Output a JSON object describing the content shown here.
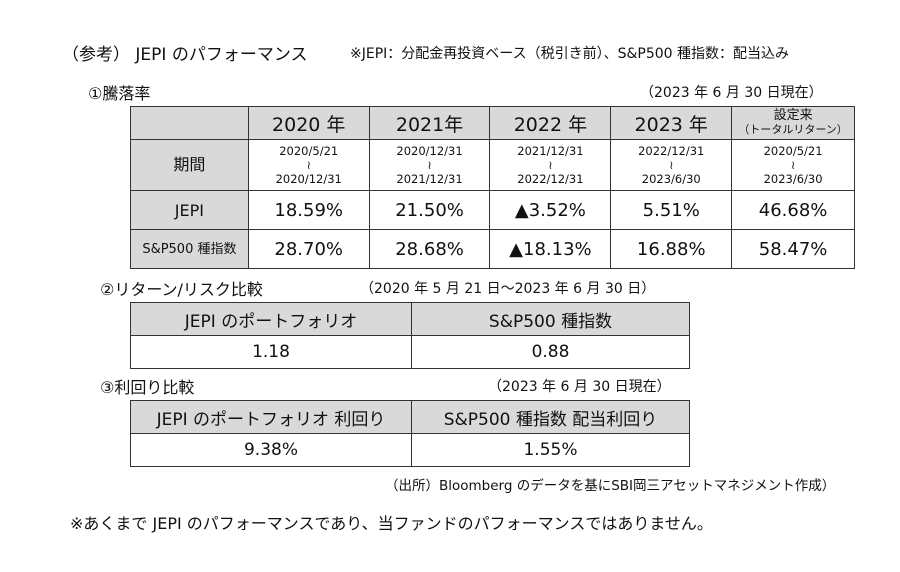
{
  "title": "（参考） JEPI のパフォーマンス",
  "note": "※JEPI：分配金再投資ベース（税引き前）、S&P500 種指数：配当込み",
  "section1": {
    "heading": "①騰落率",
    "as_of": "（2023 年 6 月 30 日現在）",
    "columns": [
      "2020 年",
      "2021年",
      "2022 年",
      "2023 年"
    ],
    "since_inception": "設定来",
    "since_inception_sub": "（トータルリターン）",
    "period_label": "期間",
    "periods": [
      {
        "start": "2020/5/21",
        "end": "2020/12/31"
      },
      {
        "start": "2020/12/31",
        "end": "2021/12/31"
      },
      {
        "start": "2021/12/31",
        "end": "2022/12/31"
      },
      {
        "start": "2022/12/31",
        "end": "2023/6/30"
      },
      {
        "start": "2020/5/21",
        "end": "2023/6/30"
      }
    ],
    "tilde": "≀",
    "rows": [
      {
        "label": "JEPI",
        "values": [
          "18.59%",
          "21.50%",
          "▲3.52%",
          "5.51%",
          "46.68%"
        ]
      },
      {
        "label": "S&P500 種指数",
        "values": [
          "28.70%",
          "28.68%",
          "▲18.13%",
          "16.88%",
          "58.47%"
        ]
      }
    ]
  },
  "section2": {
    "heading": "②リターン/リスク比較",
    "as_of": "（2020 年 5 月 21 日～2023 年 6 月 30 日）",
    "headers": [
      "JEPI のポートフォリオ",
      "S&P500 種指数"
    ],
    "values": [
      "1.18",
      "0.88"
    ]
  },
  "section3": {
    "heading": "③利回り比較",
    "as_of": "（2023 年 6 月 30 日現在）",
    "headers": [
      "JEPI のポートフォリオ 利回り",
      "S&P500 種指数 配当利回り"
    ],
    "values": [
      "9.38%",
      "1.55%"
    ]
  },
  "source": "（出所）Bloomberg のデータを基にSBI岡三アセットマネジメント作成）",
  "footer": "※あくまで JEPI のパフォーマンスであり、当ファンドのパフォーマンスではありません。"
}
